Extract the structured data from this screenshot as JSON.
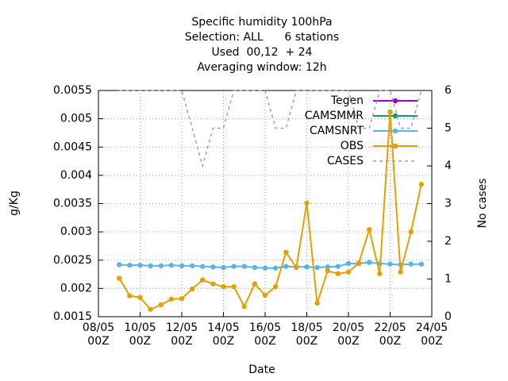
{
  "chart_data": {
    "type": "line",
    "title": [
      "Specific humidity 100hPa",
      "Selection: ALL      6 stations",
      "Used  00,12  + 24",
      "Averaging window: 12h"
    ],
    "x_label": "Date",
    "y_label": "g/Kg",
    "y2_label": "No cases",
    "x": [
      "09/05 00Z",
      "09/05 12Z",
      "10/05 00Z",
      "10/05 12Z",
      "11/05 00Z",
      "11/05 12Z",
      "12/05 00Z",
      "12/05 12Z",
      "13/05 00Z",
      "13/05 12Z",
      "14/05 00Z",
      "14/05 12Z",
      "15/05 00Z",
      "15/05 12Z",
      "16/05 00Z",
      "16/05 12Z",
      "17/05 00Z",
      "17/05 12Z",
      "18/05 00Z",
      "18/05 12Z",
      "19/05 00Z",
      "19/05 12Z",
      "20/05 00Z",
      "20/05 12Z",
      "21/05 00Z",
      "21/05 12Z",
      "22/05 00Z",
      "22/05 12Z",
      "23/05 00Z",
      "23/05 12Z"
    ],
    "xlim": [
      "08/05 00Z",
      "24/05 00Z"
    ],
    "xticks": [
      "08/05 00Z",
      "10/05 00Z",
      "12/05 00Z",
      "14/05 00Z",
      "16/05 00Z",
      "18/05 00Z",
      "20/05 00Z",
      "22/05 00Z",
      "24/05 00Z"
    ],
    "ylim": [
      0.0015,
      0.0055
    ],
    "yticks": [
      0.0015,
      0.002,
      0.0025,
      0.003,
      0.0035,
      0.004,
      0.0045,
      0.005,
      0.0055
    ],
    "y2lim": [
      0,
      6
    ],
    "y2ticks": [
      0,
      1,
      2,
      3,
      4,
      5,
      6
    ],
    "grid": true,
    "legend": "top-right",
    "series": [
      {
        "name": "Tegen",
        "color": "#9400d3",
        "values": [
          null,
          null,
          null,
          null,
          null,
          null,
          null,
          null,
          null,
          null,
          null,
          null,
          null,
          null,
          null,
          null,
          null,
          null,
          null,
          null,
          null,
          null,
          null,
          null,
          null,
          null,
          null,
          null,
          null,
          null
        ]
      },
      {
        "name": "CAMSMMR",
        "color": "#009e73",
        "values": [
          null,
          null,
          null,
          null,
          null,
          null,
          null,
          null,
          null,
          null,
          null,
          null,
          null,
          null,
          null,
          null,
          null,
          null,
          null,
          null,
          null,
          null,
          null,
          null,
          null,
          null,
          null,
          null,
          null,
          null
        ]
      },
      {
        "name": "CAMSNRT",
        "color": "#56b4e9",
        "values": [
          0.00242,
          0.00241,
          0.00241,
          0.0024,
          0.0024,
          0.00241,
          0.0024,
          0.0024,
          0.00239,
          0.00238,
          0.00237,
          0.00239,
          0.00239,
          0.00237,
          0.00236,
          0.00236,
          0.00239,
          0.00238,
          0.00238,
          0.00237,
          0.00238,
          0.00239,
          0.00244,
          0.00244,
          0.00246,
          0.00244,
          0.00243,
          0.00242,
          0.00243,
          0.00243
        ]
      },
      {
        "name": "OBS",
        "color": "#e69f00",
        "values": [
          0.00218,
          0.00187,
          0.00184,
          0.00163,
          0.00171,
          0.00181,
          0.00182,
          0.00199,
          0.00215,
          0.00208,
          0.00203,
          0.00203,
          0.00168,
          0.00208,
          0.00188,
          0.00203,
          0.00264,
          0.00237,
          0.00351,
          0.00174,
          0.00231,
          0.00226,
          0.00229,
          0.00245,
          0.00304,
          0.00226,
          0.00512,
          0.00229,
          0.003,
          0.00384
        ]
      },
      {
        "name": "CASES",
        "color": "#a0a0a0",
        "axis": "y2",
        "dashed": true,
        "values": [
          6,
          6,
          6,
          6,
          6,
          6,
          6,
          5,
          4,
          5,
          5,
          6,
          6,
          6,
          6,
          5,
          5,
          6,
          6,
          6,
          6,
          6,
          6,
          5,
          5,
          6,
          6,
          5,
          5,
          6
        ]
      }
    ]
  }
}
